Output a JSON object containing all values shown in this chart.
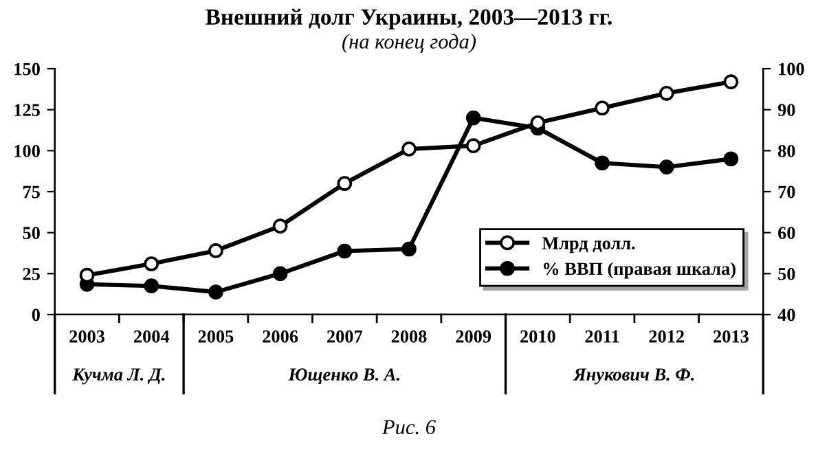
{
  "chart_data": {
    "type": "line",
    "title": "Внешний долг Украины, 2003—2013 гг.",
    "subtitle": "(на конец года)",
    "categories": [
      "2003",
      "2004",
      "2005",
      "2006",
      "2007",
      "2008",
      "2009",
      "2010",
      "2011",
      "2012",
      "2013"
    ],
    "series": [
      {
        "name": "Млрд долл.",
        "color": "#000000",
        "values": [
          24,
          31,
          39,
          54,
          80,
          101,
          103,
          117,
          126,
          135,
          142
        ]
      },
      {
        "name": "% ВВП (правая шкала)",
        "color": "#000000",
        "axis": "y2",
        "values": [
          47.4,
          47,
          45.5,
          50,
          55.5,
          56,
          88,
          85.5,
          77,
          76,
          78
        ]
      }
    ],
    "ylim": [
      0,
      150
    ],
    "yticks": [
      0,
      25,
      50,
      75,
      100,
      125,
      150
    ],
    "y2lim": [
      40,
      100
    ],
    "y2ticks": [
      40,
      50,
      60,
      70,
      80,
      90,
      100
    ],
    "marker": "circle",
    "line_style": "solid",
    "legend": "bottom right",
    "grid": false,
    "annotations": [
      "Кучма Л. Д.",
      "Ющенко В. А.",
      "Янукович В. Ф.",
      "Рис. 6"
    ]
  }
}
